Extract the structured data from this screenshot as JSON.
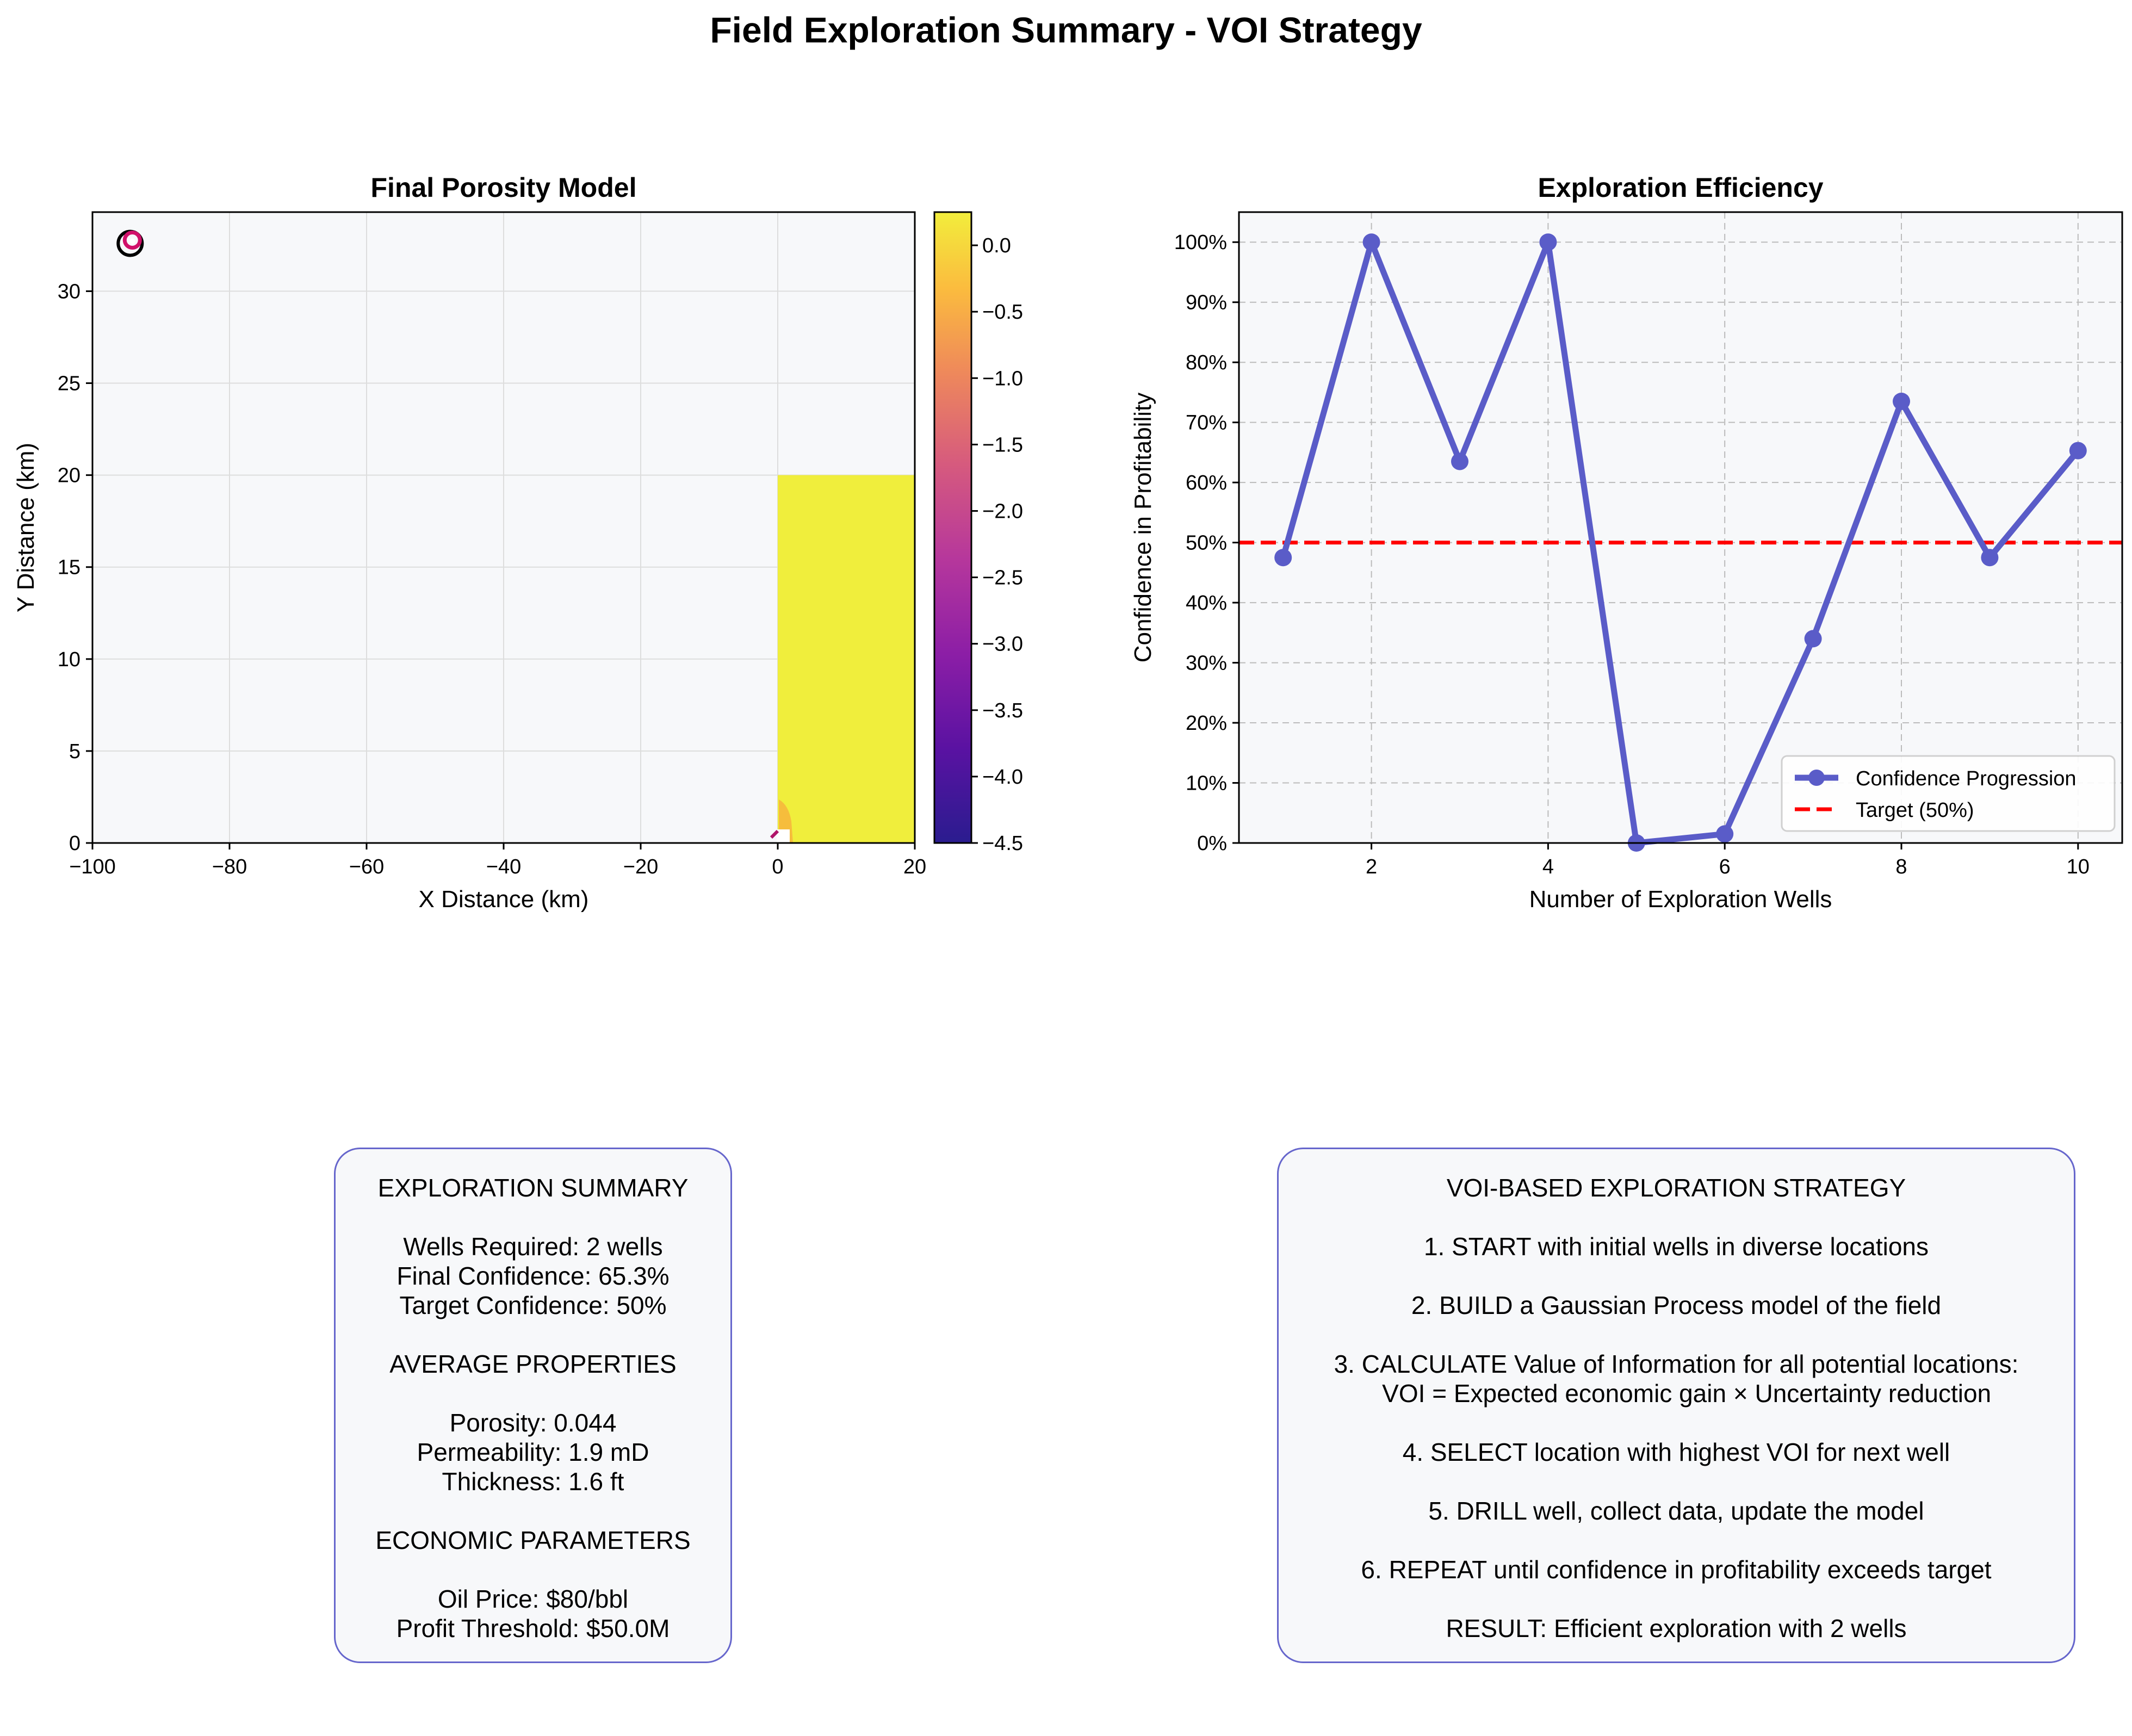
{
  "title": "Field Exploration Summary - VOI Strategy",
  "colors": {
    "panel_bg": "#f7f8fa",
    "line": "#5a5cc8",
    "target": "#ff0000",
    "porosity_fill": "#f0ee3c",
    "box_border": "#6666cc"
  },
  "porosity_map": {
    "title": "Final Porosity Model",
    "xlabel": "X Distance (km)",
    "ylabel": "Y Distance (km)",
    "xlim": [
      -100,
      20
    ],
    "ylim": [
      0,
      34.3
    ],
    "xticks": [
      "−100",
      "−80",
      "−60",
      "−40",
      "−20",
      "0",
      "20"
    ],
    "yticks": [
      "0",
      "5",
      "10",
      "15",
      "20",
      "25",
      "30"
    ],
    "colormap": "plasma",
    "colorbar_ticks": [
      "0.0",
      "−0.5",
      "−1.0",
      "−1.5",
      "−2.0",
      "−2.5",
      "−3.0",
      "−3.5",
      "−4.0",
      "−4.5"
    ],
    "colorbar_range": [
      -4.5,
      0.25
    ],
    "filled_region": {
      "x": [
        0,
        20
      ],
      "y": [
        0,
        20
      ]
    },
    "well_marker_location": {
      "x": -94.5,
      "y": 32.6
    }
  },
  "chart_data": {
    "type": "line",
    "title": "Exploration Efficiency",
    "xlabel": "Number of Exploration Wells",
    "ylabel": "Confidence in Profitability",
    "xlim": [
      0.5,
      10.5
    ],
    "ylim": [
      0,
      105
    ],
    "xticks": [
      2,
      4,
      6,
      8,
      10
    ],
    "yticks": [
      "0%",
      "10%",
      "20%",
      "30%",
      "40%",
      "50%",
      "60%",
      "70%",
      "80%",
      "90%",
      "100%"
    ],
    "grid": true,
    "legend_position": "lower-right",
    "series": [
      {
        "name": "Confidence Progression",
        "x": [
          1,
          2,
          3,
          4,
          5,
          6,
          7,
          8,
          9,
          10
        ],
        "y": [
          47.5,
          100,
          63.5,
          100,
          0,
          1.5,
          34,
          73.5,
          47.5,
          65.3
        ]
      }
    ],
    "target": {
      "name": "Target (50%)",
      "y": 50
    }
  },
  "summary_box": {
    "lines": [
      "EXPLORATION SUMMARY",
      "",
      "Wells Required: 2 wells",
      "Final Confidence: 65.3%",
      "Target Confidence: 50%",
      "",
      "AVERAGE PROPERTIES",
      "",
      "Porosity: 0.044",
      "Permeability: 1.9 mD",
      "Thickness: 1.6 ft",
      "",
      "ECONOMIC PARAMETERS",
      "",
      "Oil Price: $80/bbl",
      "Profit Threshold: $50.0M"
    ]
  },
  "strategy_box": {
    "lines": [
      "VOI-BASED EXPLORATION STRATEGY",
      "",
      "1. START with initial wells in diverse locations",
      "",
      "2. BUILD a Gaussian Process model of the field",
      "",
      "3. CALCULATE Value of Information for all potential locations:",
      "   VOI = Expected economic gain × Uncertainty reduction",
      "",
      "4. SELECT location with highest VOI for next well",
      "",
      "5. DRILL well, collect data, update the model",
      "",
      "6. REPEAT until confidence in profitability exceeds target",
      "",
      "RESULT: Efficient exploration with 2 wells"
    ]
  }
}
